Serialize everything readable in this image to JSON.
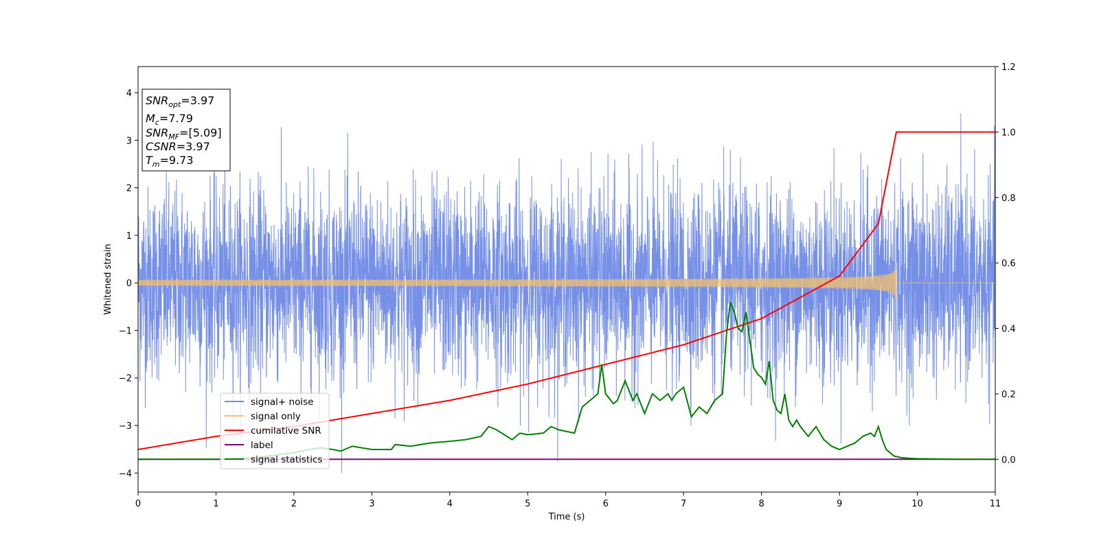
{
  "chart_data": {
    "type": "line",
    "title": "",
    "xlabel": "Time (s)",
    "ylabel": "Whitened strain",
    "xlim": [
      0,
      11
    ],
    "ylim": [
      -4.4,
      4.55
    ],
    "y2lim": [
      -0.1,
      1.2
    ],
    "grid": false,
    "legend_placement": "lower-left",
    "x_ticks": [
      "0",
      "1",
      "2",
      "3",
      "4",
      "5",
      "6",
      "7",
      "8",
      "9",
      "10",
      "11"
    ],
    "y_ticks": [
      "4",
      "3",
      "2",
      "1",
      "0",
      "−1",
      "−2",
      "−3",
      "−4"
    ],
    "y2_ticks": [
      "1.2",
      "1.0",
      "0.8",
      "0.6",
      "0.4",
      "0.2",
      "0.0"
    ],
    "info_box": {
      "snr_opt": {
        "base": "SNR",
        "sub": "opt",
        "rest": "=3.97"
      },
      "mc": {
        "base": "M",
        "sub": "c",
        "rest": "=7.79"
      },
      "snr_mf": {
        "base": "SNR",
        "sub": "MF",
        "rest": "=[5.09]"
      },
      "csnr": {
        "base": "CSNR",
        "sub": "",
        "rest": "=3.97"
      },
      "tm": {
        "base": "T",
        "sub": "m",
        "rest": "=9.73"
      }
    },
    "series": [
      {
        "name": "signal+ noise",
        "color": "#6f8ae6",
        "axis": "left",
        "description_values": {
          "std": 1.0,
          "x_range": [
            0,
            11
          ]
        }
      },
      {
        "name": "signal only",
        "color": "#f5c06a",
        "axis": "left",
        "chirp": {
          "t_merge": 9.73,
          "peak_amplitude": 0.5
        }
      },
      {
        "name": "cumilative SNR",
        "color": "#ff0000",
        "axis": "right",
        "x": [
          0,
          1,
          2,
          3,
          4,
          5,
          6,
          7,
          8,
          9,
          9.5,
          9.73,
          11
        ],
        "values": [
          0.03,
          0.07,
          0.1,
          0.14,
          0.18,
          0.23,
          0.29,
          0.35,
          0.43,
          0.56,
          0.72,
          1.0,
          1.0
        ]
      },
      {
        "name": "label",
        "color": "#800080",
        "axis": "right",
        "x": [
          0,
          11
        ],
        "values": [
          0.0,
          0.0
        ]
      },
      {
        "name": "signal statistics",
        "color": "#008000",
        "axis": "right",
        "x": [
          0,
          0.5,
          1,
          1.5,
          2,
          2.2,
          2.35,
          2.5,
          2.6,
          2.75,
          3.0,
          3.25,
          3.3,
          3.5,
          3.75,
          4.0,
          4.2,
          4.4,
          4.5,
          4.6,
          4.8,
          4.9,
          5.0,
          5.2,
          5.3,
          5.4,
          5.5,
          5.6,
          5.7,
          5.8,
          5.9,
          5.95,
          6.0,
          6.1,
          6.15,
          6.25,
          6.35,
          6.4,
          6.5,
          6.6,
          6.7,
          6.8,
          6.85,
          6.9,
          7.0,
          7.1,
          7.2,
          7.3,
          7.4,
          7.5,
          7.55,
          7.6,
          7.65,
          7.7,
          7.75,
          7.8,
          7.9,
          7.95,
          8.0,
          8.05,
          8.1,
          8.15,
          8.2,
          8.25,
          8.3,
          8.35,
          8.4,
          8.45,
          8.5,
          8.6,
          8.7,
          8.8,
          8.9,
          9.0,
          9.1,
          9.2,
          9.3,
          9.4,
          9.45,
          9.5,
          9.55,
          9.6,
          9.7,
          9.8,
          9.9,
          10.0,
          10.5,
          11.0
        ],
        "values": [
          0.0,
          0.0,
          0.0,
          0.005,
          0.02,
          0.03,
          0.035,
          0.03,
          0.025,
          0.04,
          0.03,
          0.03,
          0.045,
          0.04,
          0.05,
          0.055,
          0.06,
          0.07,
          0.1,
          0.09,
          0.06,
          0.08,
          0.075,
          0.08,
          0.1,
          0.09,
          0.085,
          0.08,
          0.16,
          0.18,
          0.2,
          0.29,
          0.2,
          0.17,
          0.18,
          0.24,
          0.18,
          0.2,
          0.14,
          0.2,
          0.18,
          0.2,
          0.18,
          0.2,
          0.22,
          0.13,
          0.16,
          0.14,
          0.18,
          0.2,
          0.38,
          0.48,
          0.45,
          0.4,
          0.39,
          0.45,
          0.28,
          0.26,
          0.25,
          0.23,
          0.3,
          0.18,
          0.15,
          0.14,
          0.2,
          0.12,
          0.1,
          0.12,
          0.1,
          0.07,
          0.1,
          0.06,
          0.04,
          0.03,
          0.04,
          0.05,
          0.07,
          0.08,
          0.07,
          0.1,
          0.06,
          0.03,
          0.01,
          0.005,
          0.003,
          0.002,
          0.0,
          0.0
        ]
      }
    ]
  }
}
